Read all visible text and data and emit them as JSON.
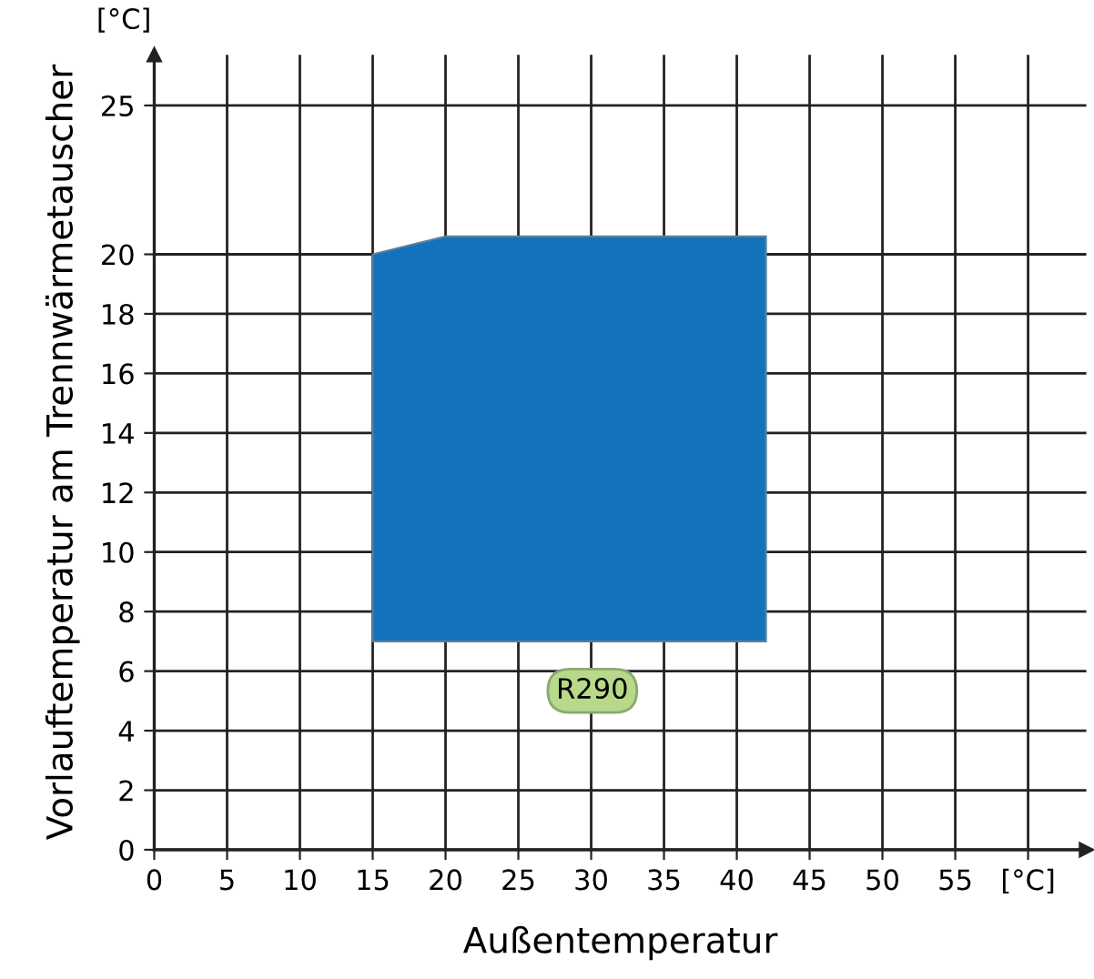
{
  "chart_data": {
    "type": "area",
    "xlabel": "Außentemperatur",
    "ylabel": "Vorlauftemperatur am Trennwärmetauscher",
    "x": [
      15,
      15,
      20,
      42,
      42
    ],
    "series": [
      {
        "color": "#1272bb",
        "values": [
          7,
          20,
          20.6,
          20.6,
          7
        ]
      }
    ],
    "annotations": [
      "R290",
      "[°C]"
    ],
    "xlim": [
      0,
      64
    ],
    "xticks": [
      0,
      5,
      10,
      15,
      20,
      25,
      30,
      35,
      40,
      45,
      50,
      55,
      {
        "value": 60,
        "label": "[°C]"
      }
    ],
    "ylim": [
      0,
      26.7
    ],
    "yticks": [
      0,
      2,
      4,
      6,
      8,
      10,
      12,
      14,
      16,
      18,
      20,
      25
    ],
    "grid": true
  }
}
